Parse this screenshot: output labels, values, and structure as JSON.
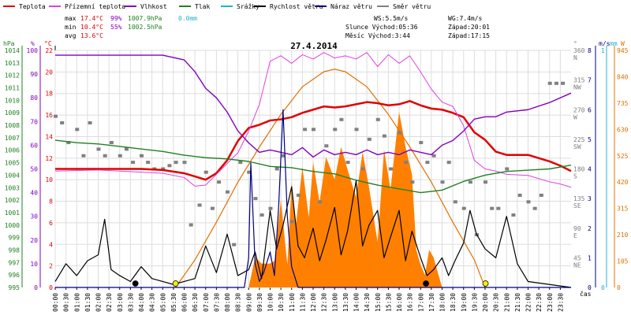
{
  "legend": [
    {
      "label": "Teplota",
      "color": "#e00000"
    },
    {
      "label": "Přízemní teplota",
      "color": "#e040e0"
    },
    {
      "label": "Vlhkost",
      "color": "#8000c0"
    },
    {
      "label": "Tlak",
      "color": "#208020"
    },
    {
      "label": "Srážky",
      "color": "#20b0d0"
    },
    {
      "label": "Rychlost větru",
      "color": "#000000"
    },
    {
      "label": "Náraz větru",
      "color": "#000080"
    },
    {
      "label": "Směr větru",
      "color": "#808080"
    }
  ],
  "stats": {
    "max_label": "max",
    "max_temp": "17.4°C",
    "max_hum": "99%",
    "max_press": "1007.9hPa",
    "max_rain": "0.0mm",
    "min_label": "min",
    "min_temp": "10.4°C",
    "min_hum": "55%",
    "min_press": "1002.5hPa",
    "avg_label": "avg",
    "avg_temp": "13.6°C",
    "ws": "WS:5.5m/s",
    "wg": "WG:7.4m/s",
    "sun": "Slunce Východ:05:36",
    "sunset": "Západ:20:01",
    "moon": "Měsíc Východ:3:44",
    "moonset": "Západ:17:15"
  },
  "colors": {
    "temp": "#e00000",
    "ground": "#e040e0",
    "hum": "#8000c0",
    "press": "#208020",
    "rain": "#20b0d0",
    "wind": "#000000",
    "gust": "#000080",
    "dir": "#808080",
    "solar": "#ff8000",
    "solar_curve": "#e07000"
  },
  "axis_units": {
    "hpa": "hPa",
    "pct": "%",
    "c": "°C",
    "deg": "°",
    "ms": "m/s",
    "mm": "mm",
    "w": "W",
    "cas": "čas"
  },
  "chart_data": {
    "type": "line",
    "title": "27.4.2014",
    "x_ticks": [
      "00:00",
      "00:30",
      "01:00",
      "01:30",
      "02:00",
      "02:30",
      "03:00",
      "03:30",
      "04:00",
      "04:30",
      "05:00",
      "05:30",
      "06:00",
      "06:30",
      "07:00",
      "07:30",
      "08:00",
      "08:30",
      "09:00",
      "09:30",
      "10:00",
      "10:30",
      "11:00",
      "11:30",
      "12:00",
      "12:30",
      "13:00",
      "13:30",
      "14:00",
      "14:30",
      "15:00",
      "15:30",
      "16:00",
      "16:30",
      "17:00",
      "17:30",
      "18:00",
      "18:30",
      "19:00",
      "19:30",
      "20:00",
      "20:30",
      "21:00",
      "21:30",
      "22:00",
      "22:30",
      "23:00",
      "23:30"
    ],
    "hpa_ticks": [
      "1014",
      "1013",
      "1012",
      "1011",
      "1010",
      "1009",
      "1008",
      "1007",
      "1006",
      "1005",
      "1004",
      "1003",
      "1002",
      "1001",
      "1000",
      "999",
      "998",
      "997",
      "996",
      "995"
    ],
    "pct_ticks": [
      "100",
      "90",
      "80",
      "70",
      "60",
      "50",
      "40",
      "30",
      "20",
      "10",
      "0"
    ],
    "c_ticks": [
      "22",
      "20",
      "18",
      "16",
      "14",
      "12",
      "10",
      "8",
      "6",
      "4",
      "2",
      "0"
    ],
    "dir_ticks": [
      "360",
      "N",
      "315",
      "NW",
      "270",
      "W",
      "225",
      "SW",
      "180",
      "S",
      "135",
      "SE",
      "90",
      "E",
      "45",
      "NE"
    ],
    "ms_ticks": [
      "8",
      "7",
      "6",
      "5",
      "4",
      "3",
      "2",
      "1",
      "0"
    ],
    "mm_ticks": [
      "1",
      "0"
    ],
    "w_ticks": [
      "945",
      "840",
      "735",
      "630",
      "525",
      "420",
      "315",
      "210",
      "105",
      "0"
    ],
    "ranges": {
      "hpa": [
        995,
        1014
      ],
      "pct": [
        0,
        100
      ],
      "c": [
        0,
        22
      ],
      "ms": [
        0,
        8
      ],
      "w": [
        0,
        945
      ],
      "dir": [
        0,
        360
      ]
    },
    "series": [
      {
        "name": "Teplota",
        "axis": "c",
        "color": "#e00000",
        "x": [
          0,
          2,
          4,
          5,
          6,
          6.5,
          7,
          7.5,
          8,
          8.5,
          9,
          9.5,
          10,
          10.5,
          11,
          11.5,
          12,
          12.5,
          13,
          13.5,
          14,
          14.5,
          15,
          15.5,
          16,
          16.5,
          17,
          17.5,
          18,
          18.5,
          19,
          19.5,
          20,
          20.5,
          21,
          22,
          23,
          23.5,
          24
        ],
        "y": [
          11.0,
          11.0,
          11.0,
          10.9,
          10.6,
          10.3,
          10.0,
          10.6,
          11.8,
          13.6,
          14.8,
          15.1,
          15.5,
          15.6,
          15.8,
          16.2,
          16.5,
          16.8,
          16.7,
          16.8,
          17.0,
          17.2,
          17.1,
          16.9,
          17.0,
          17.3,
          16.9,
          16.6,
          16.5,
          16.2,
          15.8,
          14.4,
          13.7,
          12.6,
          12.3,
          12.3,
          11.7,
          11.3,
          10.8
        ]
      },
      {
        "name": "Přízemní teplota",
        "axis": "c",
        "color": "#e040e0",
        "x": [
          0,
          2,
          4,
          5,
          6,
          6.5,
          7,
          7.5,
          8,
          8.5,
          9,
          9.5,
          10,
          10.5,
          11,
          11.5,
          12,
          12.5,
          13,
          13.5,
          14,
          14.5,
          15,
          15.5,
          16,
          16.5,
          17,
          17.5,
          18,
          18.5,
          19,
          19.5,
          20,
          20.5,
          21,
          22,
          23,
          23.5,
          24
        ],
        "y": [
          10.8,
          10.9,
          10.7,
          10.6,
          10.2,
          9.4,
          9.5,
          10.5,
          11.5,
          12.5,
          14.5,
          17.0,
          21.0,
          21.5,
          20.8,
          21.6,
          21.2,
          21.8,
          21.3,
          21.5,
          21.2,
          21.8,
          20.5,
          21.6,
          20.8,
          21.5,
          20.0,
          18.4,
          17.2,
          16.8,
          15.0,
          11.8,
          11.0,
          10.8,
          10.5,
          10.4,
          9.8,
          9.6,
          9.3
        ]
      },
      {
        "name": "Vlhkost",
        "axis": "pct",
        "color": "#8000c0",
        "x": [
          0,
          2,
          4,
          5,
          6,
          6.5,
          7,
          7.5,
          8,
          8.5,
          9,
          9.5,
          10,
          10.5,
          11,
          11.5,
          12,
          12.5,
          13,
          13.5,
          14,
          14.5,
          15,
          15.5,
          16,
          16.5,
          17,
          17.5,
          18,
          18.5,
          19,
          19.5,
          20,
          20.5,
          21,
          22,
          23,
          24
        ],
        "y": [
          98,
          98,
          98,
          98,
          96,
          91,
          84,
          80,
          74,
          66,
          61,
          57,
          58,
          57,
          56,
          59,
          55,
          58,
          56,
          57,
          56,
          58,
          56,
          57,
          56,
          58,
          57,
          56,
          60,
          62,
          66,
          71,
          72,
          72,
          74,
          75,
          78,
          82
        ]
      },
      {
        "name": "Tlak",
        "axis": "hpa",
        "color": "#208020",
        "x": [
          0,
          1,
          2,
          3,
          4,
          5,
          6,
          7,
          8,
          9,
          10,
          11,
          12,
          13,
          14,
          15,
          16,
          17,
          17.5,
          18,
          19,
          20,
          21,
          22,
          23,
          24
        ],
        "y": [
          1006.8,
          1006.6,
          1006.5,
          1006.3,
          1006.1,
          1005.9,
          1005.6,
          1005.4,
          1005.3,
          1005.1,
          1004.7,
          1004.6,
          1004.3,
          1004.1,
          1003.6,
          1003.2,
          1002.9,
          1002.6,
          1002.7,
          1002.8,
          1003.5,
          1004.0,
          1004.3,
          1004.4,
          1004.5,
          1004.8
        ]
      },
      {
        "name": "Rychlost větru",
        "axis": "ms",
        "color": "#000000",
        "x": [
          0,
          0.5,
          1,
          1.5,
          2,
          2.3,
          2.6,
          3,
          3.5,
          4,
          4.5,
          5,
          5.5,
          6,
          6.5,
          7,
          7.5,
          8,
          8.5,
          9,
          9.3,
          9.6,
          10,
          10.3,
          10.6,
          11,
          11.3,
          11.6,
          12,
          12.3,
          12.6,
          13,
          13.3,
          13.6,
          14,
          14.3,
          14.6,
          15,
          15.3,
          15.6,
          16,
          16.3,
          16.6,
          17,
          17.3,
          17.6,
          18,
          18.3,
          18.6,
          19,
          19.3,
          19.6,
          20,
          20.5,
          21,
          21.5,
          22,
          23,
          24
        ],
        "y": [
          0.2,
          0.8,
          0.4,
          0.9,
          1.1,
          2.3,
          0.6,
          0.4,
          0.2,
          0.7,
          0.3,
          0.2,
          0.1,
          0.2,
          0.3,
          1.4,
          0.5,
          1.8,
          0.4,
          0.6,
          1.2,
          0.3,
          2.6,
          1.3,
          2.1,
          3.4,
          1.4,
          1.0,
          2.0,
          0.9,
          1.6,
          2.7,
          1.1,
          1.9,
          3.6,
          1.4,
          2.1,
          2.6,
          1.0,
          1.7,
          2.6,
          0.9,
          1.9,
          1.0,
          0.4,
          0.6,
          1.0,
          0.4,
          0.9,
          1.5,
          2.6,
          1.8,
          1.3,
          1.0,
          2.4,
          0.8,
          0.2,
          0.1,
          0.0
        ]
      },
      {
        "name": "Náraz větru",
        "axis": "ms",
        "color": "#000080",
        "x": [
          0,
          8.8,
          9.0,
          9.1,
          9.3,
          9.5,
          9.7,
          10,
          10.2,
          10.4,
          10.6,
          10.8,
          11.0,
          11.3,
          24
        ],
        "y": [
          0,
          0,
          1.0,
          4.2,
          0.8,
          0.2,
          0.5,
          1.2,
          0.4,
          2.8,
          6.0,
          2.4,
          0.7,
          0.0,
          0
        ]
      }
    ],
    "solar": {
      "axis": "w",
      "x": [
        9.0,
        9.3,
        9.6,
        10,
        10.2,
        10.5,
        10.8,
        11,
        11.2,
        11.5,
        11.8,
        12,
        12.3,
        12.6,
        13,
        13.3,
        13.6,
        14,
        14.3,
        14.6,
        15,
        15.3,
        15.6,
        16,
        16.3,
        16.6,
        16.8,
        17,
        17.2,
        17.4,
        17.6,
        18
      ],
      "y": [
        0,
        120,
        95,
        95,
        105,
        350,
        90,
        420,
        250,
        480,
        280,
        500,
        340,
        520,
        430,
        560,
        470,
        360,
        540,
        400,
        180,
        550,
        390,
        700,
        560,
        450,
        150,
        90,
        50,
        150,
        120,
        0
      ]
    },
    "solar_curve": {
      "axis": "w",
      "x": [
        5.6,
        6.5,
        7.5,
        8.5,
        9.5,
        10.5,
        11.5,
        12.5,
        13,
        13.5,
        14.5,
        15.5,
        16.5,
        17.5,
        18.5,
        19.5,
        20.0
      ],
      "y": [
        0,
        110,
        260,
        420,
        560,
        690,
        800,
        860,
        870,
        860,
        800,
        690,
        560,
        420,
        260,
        110,
        0
      ]
    },
    "wind_dir_marks": {
      "axis": "dir",
      "x": [
        0,
        0.3,
        0.6,
        1,
        1.3,
        1.6,
        2,
        2.3,
        2.6,
        3,
        3.3,
        3.6,
        4,
        4.3,
        4.6,
        5,
        5.3,
        5.6,
        6,
        6.3,
        6.7,
        7,
        7.3,
        7.6,
        8,
        8.3,
        8.6,
        9,
        9.3,
        9.6,
        10,
        10.3,
        10.6,
        11,
        11.3,
        11.6,
        12,
        12.3,
        12.6,
        13,
        13.3,
        13.6,
        14,
        14.3,
        14.6,
        15,
        15.3,
        15.6,
        16,
        16.3,
        16.6,
        17,
        17.3,
        17.6,
        18,
        18.3,
        18.6,
        19,
        19.3,
        19.6,
        20,
        20.3,
        20.6,
        21,
        21.3,
        21.6,
        22,
        22.3,
        22.6,
        23,
        23.3,
        23.6
      ],
      "y": [
        260,
        250,
        220,
        240,
        200,
        250,
        210,
        200,
        220,
        200,
        210,
        190,
        200,
        190,
        180,
        180,
        185,
        190,
        190,
        95,
        125,
        175,
        120,
        160,
        145,
        65,
        190,
        175,
        135,
        110,
        120,
        180,
        200,
        100,
        140,
        240,
        240,
        130,
        215,
        240,
        255,
        190,
        240,
        180,
        225,
        255,
        230,
        180,
        235,
        190,
        160,
        220,
        190,
        200,
        160,
        190,
        130,
        120,
        160,
        80,
        160,
        120,
        120,
        180,
        110,
        140,
        130,
        120,
        140,
        310,
        310,
        310
      ]
    },
    "astro_markers": [
      {
        "name": "moonrise",
        "x": 3.73,
        "color": "#000000"
      },
      {
        "name": "sunrise",
        "x": 5.6,
        "color": "#f0f000"
      },
      {
        "name": "moonset",
        "x": 17.25,
        "color": "#000000"
      },
      {
        "name": "sunset",
        "x": 20.02,
        "color": "#f0f000"
      }
    ]
  }
}
